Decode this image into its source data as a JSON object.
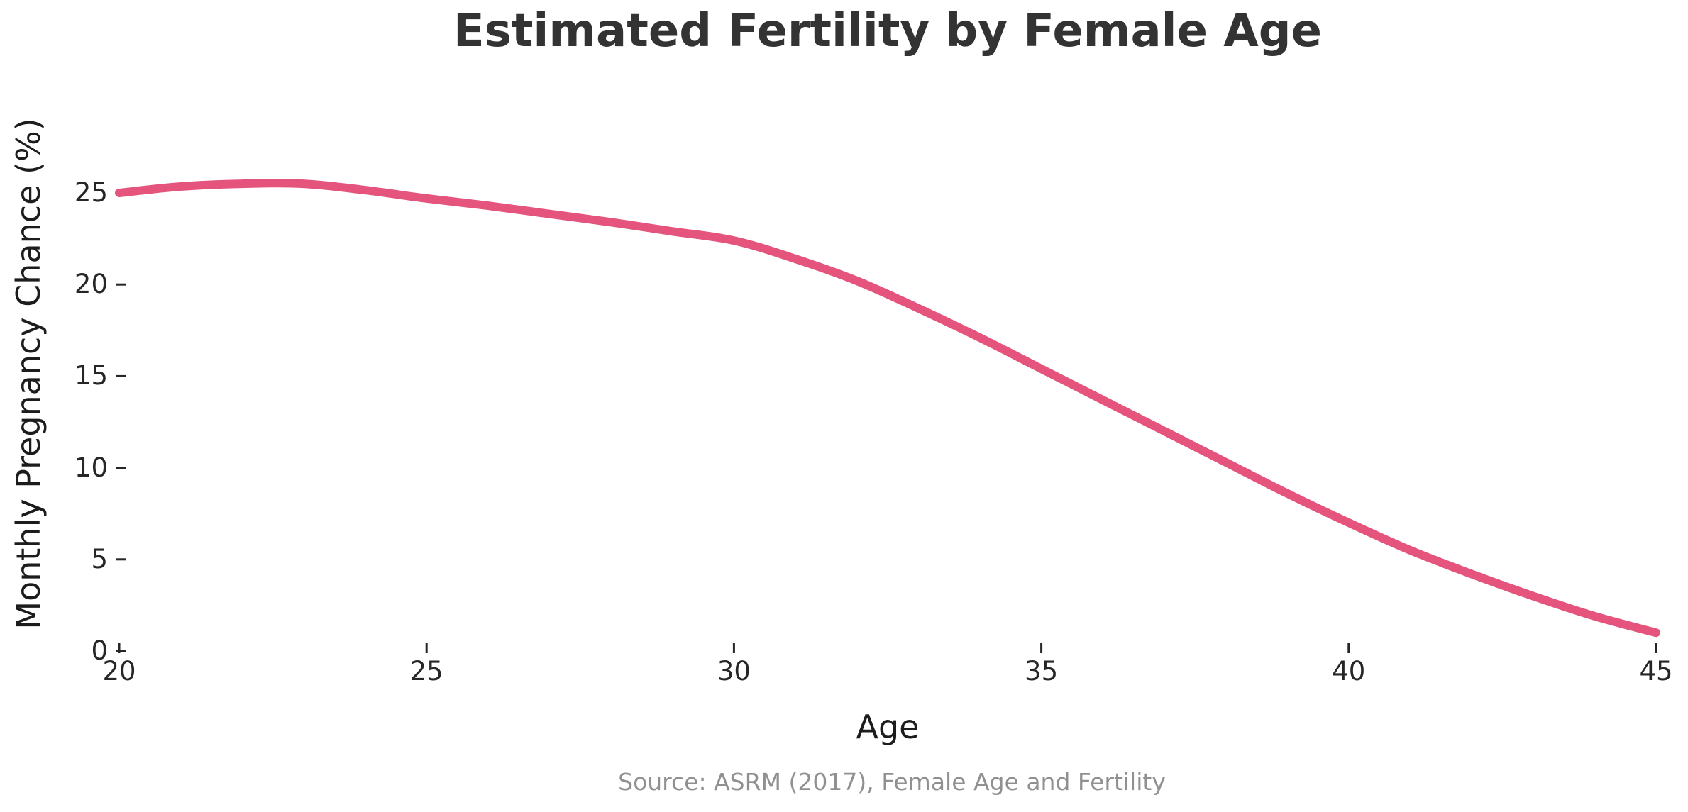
{
  "chart_data": {
    "type": "line",
    "title": "Estimated Fertility by Female Age",
    "xlabel": "Age",
    "ylabel": "Monthly Pregnancy Chance (%)",
    "source_note": "Source: ASRM (2017), Female Age and Fertility",
    "xlim": [
      20,
      45
    ],
    "ylim": [
      0,
      28
    ],
    "x_ticks": [
      20,
      25,
      30,
      35,
      40,
      45
    ],
    "y_ticks": [
      0,
      5,
      10,
      15,
      20,
      25
    ],
    "grid": false,
    "legend": false,
    "line_color": "#E4547D",
    "colors": {
      "title": "#333333",
      "axis_labels": "#1c1c1c",
      "tick_labels": "#262626",
      "source": "#909090",
      "background": "#ffffff"
    },
    "series": [
      {
        "name": "Monthly pregnancy chance (%)",
        "x": [
          20,
          21,
          22,
          23,
          24,
          25,
          26,
          27,
          28,
          29,
          30,
          31,
          32,
          33,
          34,
          35,
          36,
          37,
          38,
          39,
          40,
          41,
          42,
          43,
          44,
          45
        ],
        "y": [
          25.0,
          25.35,
          25.5,
          25.5,
          25.15,
          24.7,
          24.3,
          23.85,
          23.4,
          22.9,
          22.4,
          21.4,
          20.2,
          18.7,
          17.1,
          15.4,
          13.7,
          12.0,
          10.3,
          8.6,
          7.0,
          5.5,
          4.2,
          3.0,
          1.9,
          1.0
        ]
      }
    ]
  }
}
